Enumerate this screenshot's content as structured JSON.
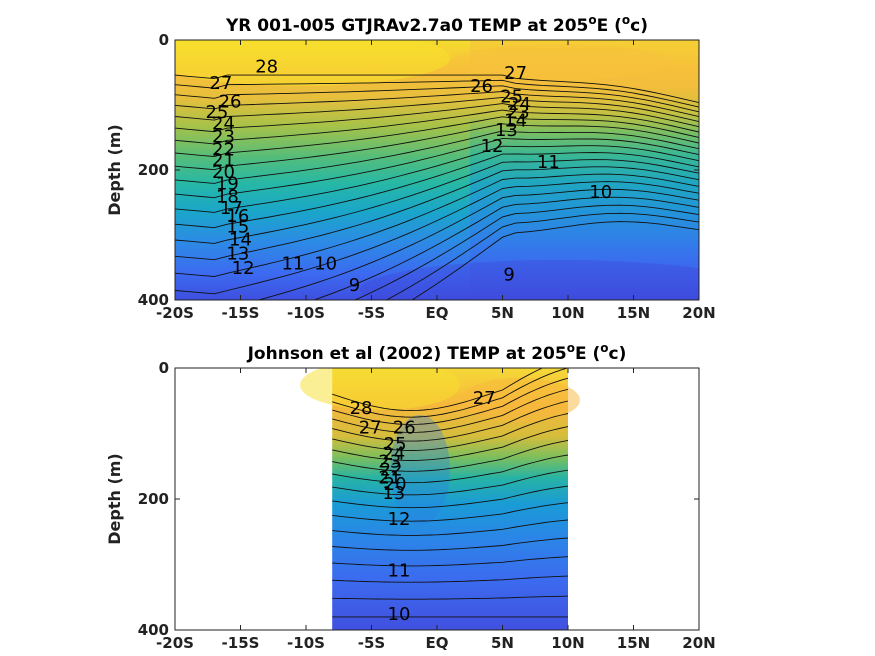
{
  "chart_data": [
    {
      "type": "heatmap",
      "title_main": "YR 001-005 GTJRAv2.7a0 TEMP at 205",
      "title_sup": "o",
      "title_end": "E (",
      "title_unit_sup": "o",
      "title_unit": "c)",
      "ylabel": "Depth (m)",
      "xlim": [
        -20,
        20
      ],
      "ylim": [
        0,
        400
      ],
      "y_reversed": true,
      "x_ticks": [
        {
          "v": -20,
          "label": "-20S"
        },
        {
          "v": -15,
          "label": "-15S"
        },
        {
          "v": -10,
          "label": "-10S"
        },
        {
          "v": -5,
          "label": "-5S"
        },
        {
          "v": 0,
          "label": "EQ"
        },
        {
          "v": 5,
          "label": "5N"
        },
        {
          "v": 10,
          "label": "10N"
        },
        {
          "v": 15,
          "label": "15N"
        },
        {
          "v": 20,
          "label": "20N"
        }
      ],
      "y_ticks": [
        {
          "v": 0,
          "label": "0"
        },
        {
          "v": 200,
          "label": "200"
        },
        {
          "v": 400,
          "label": "400"
        }
      ],
      "data_x_range": [
        -20,
        20
      ],
      "contour_labels": [
        {
          "text": "28",
          "lat": -13.0,
          "depth": 50
        },
        {
          "text": "27",
          "lat": -16.5,
          "depth": 75
        },
        {
          "text": "26",
          "lat": -15.8,
          "depth": 104
        },
        {
          "text": "25",
          "lat": -16.8,
          "depth": 120
        },
        {
          "text": "24",
          "lat": -16.3,
          "depth": 138
        },
        {
          "text": "23",
          "lat": -16.3,
          "depth": 158
        },
        {
          "text": "22",
          "lat": -16.3,
          "depth": 178
        },
        {
          "text": "21",
          "lat": -16.3,
          "depth": 194
        },
        {
          "text": "20",
          "lat": -16.3,
          "depth": 212
        },
        {
          "text": "19",
          "lat": -16.0,
          "depth": 230
        },
        {
          "text": "18",
          "lat": -16.0,
          "depth": 250
        },
        {
          "text": "17",
          "lat": -15.7,
          "depth": 268
        },
        {
          "text": "16",
          "lat": -15.2,
          "depth": 280
        },
        {
          "text": "15",
          "lat": -15.2,
          "depth": 296
        },
        {
          "text": "14",
          "lat": -15.0,
          "depth": 316
        },
        {
          "text": "13",
          "lat": -15.2,
          "depth": 338
        },
        {
          "text": "12",
          "lat": -14.8,
          "depth": 360
        },
        {
          "text": "11",
          "lat": -11.0,
          "depth": 353
        },
        {
          "text": "10",
          "lat": -8.5,
          "depth": 353
        },
        {
          "text": "9",
          "lat": -6.3,
          "depth": 386
        },
        {
          "text": "27",
          "lat": 6.0,
          "depth": 60
        },
        {
          "text": "26",
          "lat": 3.4,
          "depth": 80
        },
        {
          "text": "25",
          "lat": 5.7,
          "depth": 96
        },
        {
          "text": "24",
          "lat": 6.3,
          "depth": 108
        },
        {
          "text": "23",
          "lat": 6.2,
          "depth": 120
        },
        {
          "text": "14",
          "lat": 6.0,
          "depth": 133
        },
        {
          "text": "13",
          "lat": 5.3,
          "depth": 148
        },
        {
          "text": "12",
          "lat": 4.2,
          "depth": 172
        },
        {
          "text": "11",
          "lat": 8.5,
          "depth": 197
        },
        {
          "text": "10",
          "lat": 12.5,
          "depth": 243
        },
        {
          "text": "9",
          "lat": 5.5,
          "depth": 370
        }
      ]
    },
    {
      "type": "heatmap",
      "title_main": "Johnson et al (2002) TEMP at 205",
      "title_sup": "o",
      "title_end": "E (",
      "title_unit_sup": "o",
      "title_unit": "c)",
      "ylabel": "Depth (m)",
      "xlim": [
        -20,
        20
      ],
      "ylim": [
        0,
        400
      ],
      "y_reversed": true,
      "x_ticks": [
        {
          "v": -20,
          "label": "-20S"
        },
        {
          "v": -15,
          "label": "-15S"
        },
        {
          "v": -10,
          "label": "-10S"
        },
        {
          "v": -5,
          "label": "-5S"
        },
        {
          "v": 0,
          "label": "EQ"
        },
        {
          "v": 5,
          "label": "5N"
        },
        {
          "v": 10,
          "label": "10N"
        },
        {
          "v": 15,
          "label": "15N"
        },
        {
          "v": 20,
          "label": "20N"
        }
      ],
      "y_ticks": [
        {
          "v": 0,
          "label": "0"
        },
        {
          "v": 200,
          "label": "200"
        },
        {
          "v": 400,
          "label": "400"
        }
      ],
      "data_x_range": [
        -8,
        10
      ],
      "contour_labels": [
        {
          "text": "28",
          "lat": -5.8,
          "depth": 70
        },
        {
          "text": "27",
          "lat": -5.1,
          "depth": 100
        },
        {
          "text": "27",
          "lat": 3.6,
          "depth": 55
        },
        {
          "text": "26",
          "lat": -2.5,
          "depth": 100
        },
        {
          "text": "25",
          "lat": -3.2,
          "depth": 125
        },
        {
          "text": "24",
          "lat": -3.3,
          "depth": 140
        },
        {
          "text": "23",
          "lat": -3.6,
          "depth": 152
        },
        {
          "text": "22",
          "lat": -3.5,
          "depth": 164
        },
        {
          "text": "21",
          "lat": -3.6,
          "depth": 176
        },
        {
          "text": "20",
          "lat": -3.2,
          "depth": 186
        },
        {
          "text": "13",
          "lat": -3.3,
          "depth": 200
        },
        {
          "text": "12",
          "lat": -2.9,
          "depth": 240
        },
        {
          "text": "11",
          "lat": -2.9,
          "depth": 318
        },
        {
          "text": "10",
          "lat": -2.9,
          "depth": 385
        }
      ]
    }
  ]
}
